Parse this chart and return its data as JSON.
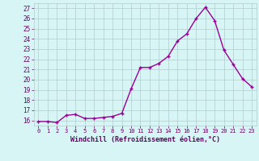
{
  "x": [
    0,
    1,
    2,
    3,
    4,
    5,
    6,
    7,
    8,
    9,
    10,
    11,
    12,
    13,
    14,
    15,
    16,
    17,
    18,
    19,
    20,
    21,
    22,
    23
  ],
  "y": [
    15.9,
    15.9,
    15.8,
    16.5,
    16.6,
    16.2,
    16.2,
    16.3,
    16.4,
    16.7,
    19.1,
    21.2,
    21.2,
    21.6,
    22.3,
    23.8,
    24.5,
    26.0,
    27.1,
    25.8,
    22.9,
    21.5,
    20.1,
    19.3
  ],
  "line_color": "#990099",
  "marker": "+",
  "marker_size": 3,
  "marker_linewidth": 1.0,
  "bg_color": "#d8f5f5",
  "grid_color": "#b0cccc",
  "xlabel": "Windchill (Refroidissement éolien,°C)",
  "ylabel_ticks": [
    16,
    17,
    18,
    19,
    20,
    21,
    22,
    23,
    24,
    25,
    26,
    27
  ],
  "ylim": [
    15.5,
    27.5
  ],
  "xlim": [
    -0.5,
    23.5
  ],
  "xlabel_color": "#660066",
  "tick_color": "#660066",
  "xlabel_fontsize": 6.0,
  "ytick_fontsize": 5.5,
  "xtick_fontsize": 5.0,
  "linewidth": 1.0
}
